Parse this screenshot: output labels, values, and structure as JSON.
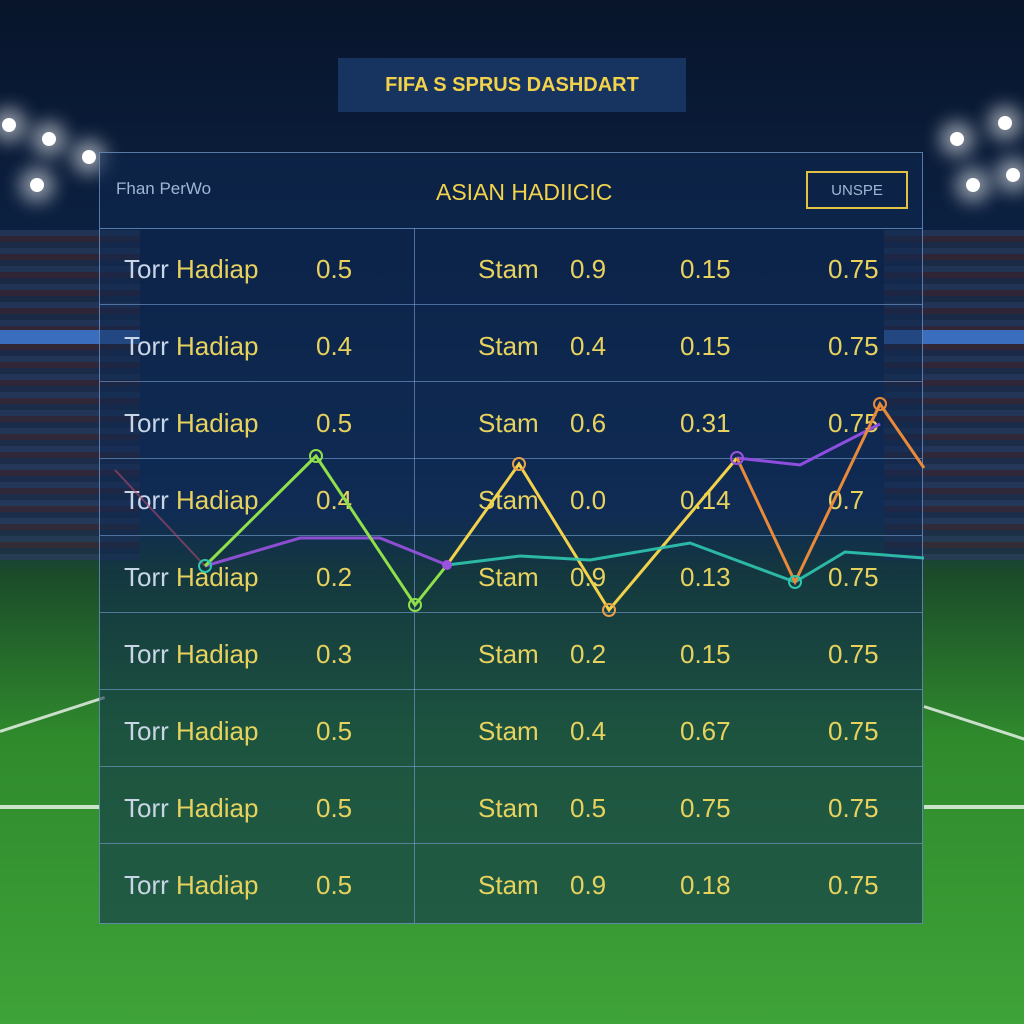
{
  "dashboard": {
    "title": "FIFA S SPRUS DASHDART",
    "header_left": "Fhan PerWo",
    "header_center": "ASIAN HADIICIC",
    "header_button": "UNSPE"
  },
  "table": {
    "rows": [
      {
        "label_prefix": "Torr",
        "label": "Hadiap",
        "v1": "0.5",
        "stam": "Stam",
        "v2": "0.9",
        "v3": "0.15",
        "v4": "0.75"
      },
      {
        "label_prefix": "Torr",
        "label": "Hadiap",
        "v1": "0.4",
        "stam": "Stam",
        "v2": "0.4",
        "v3": "0.15",
        "v4": "0.75"
      },
      {
        "label_prefix": "Torr",
        "label": "Hadiap",
        "v1": "0.5",
        "stam": "Stam",
        "v2": "0.6",
        "v3": "0.31",
        "v4": "0.75"
      },
      {
        "label_prefix": "Torr",
        "label": "Hadiap",
        "v1": "0.4",
        "stam": "Stam",
        "v2": "0.0",
        "v3": "0.14",
        "v4": "0.7"
      },
      {
        "label_prefix": "Torr",
        "label": "Hadiap",
        "v1": "0.2",
        "stam": "Stam",
        "v2": "0.9",
        "v3": "0.13",
        "v4": "0.75"
      },
      {
        "label_prefix": "Torr",
        "label": "Hadiap",
        "v1": "0.3",
        "stam": "Stam",
        "v2": "0.2",
        "v3": "0.15",
        "v4": "0.75"
      },
      {
        "label_prefix": "Torr",
        "label": "Hadiap",
        "v1": "0.5",
        "stam": "Stam",
        "v2": "0.4",
        "v3": "0.67",
        "v4": "0.75"
      },
      {
        "label_prefix": "Torr",
        "label": "Hadiap",
        "v1": "0.5",
        "stam": "Stam",
        "v2": "0.5",
        "v3": "0.75",
        "v4": "0.75"
      },
      {
        "label_prefix": "Torr",
        "label": "Hadiap",
        "v1": "0.5",
        "stam": "Stam",
        "v2": "0.9",
        "v3": "0.18",
        "v4": "0.75"
      }
    ]
  },
  "colors": {
    "accent": "#f2d24b",
    "series_green": "#8fe04a",
    "series_yellow": "#f2d24b",
    "series_purple": "#9a52e0",
    "series_orange": "#e88a3a",
    "series_teal": "#2fc7b0"
  }
}
